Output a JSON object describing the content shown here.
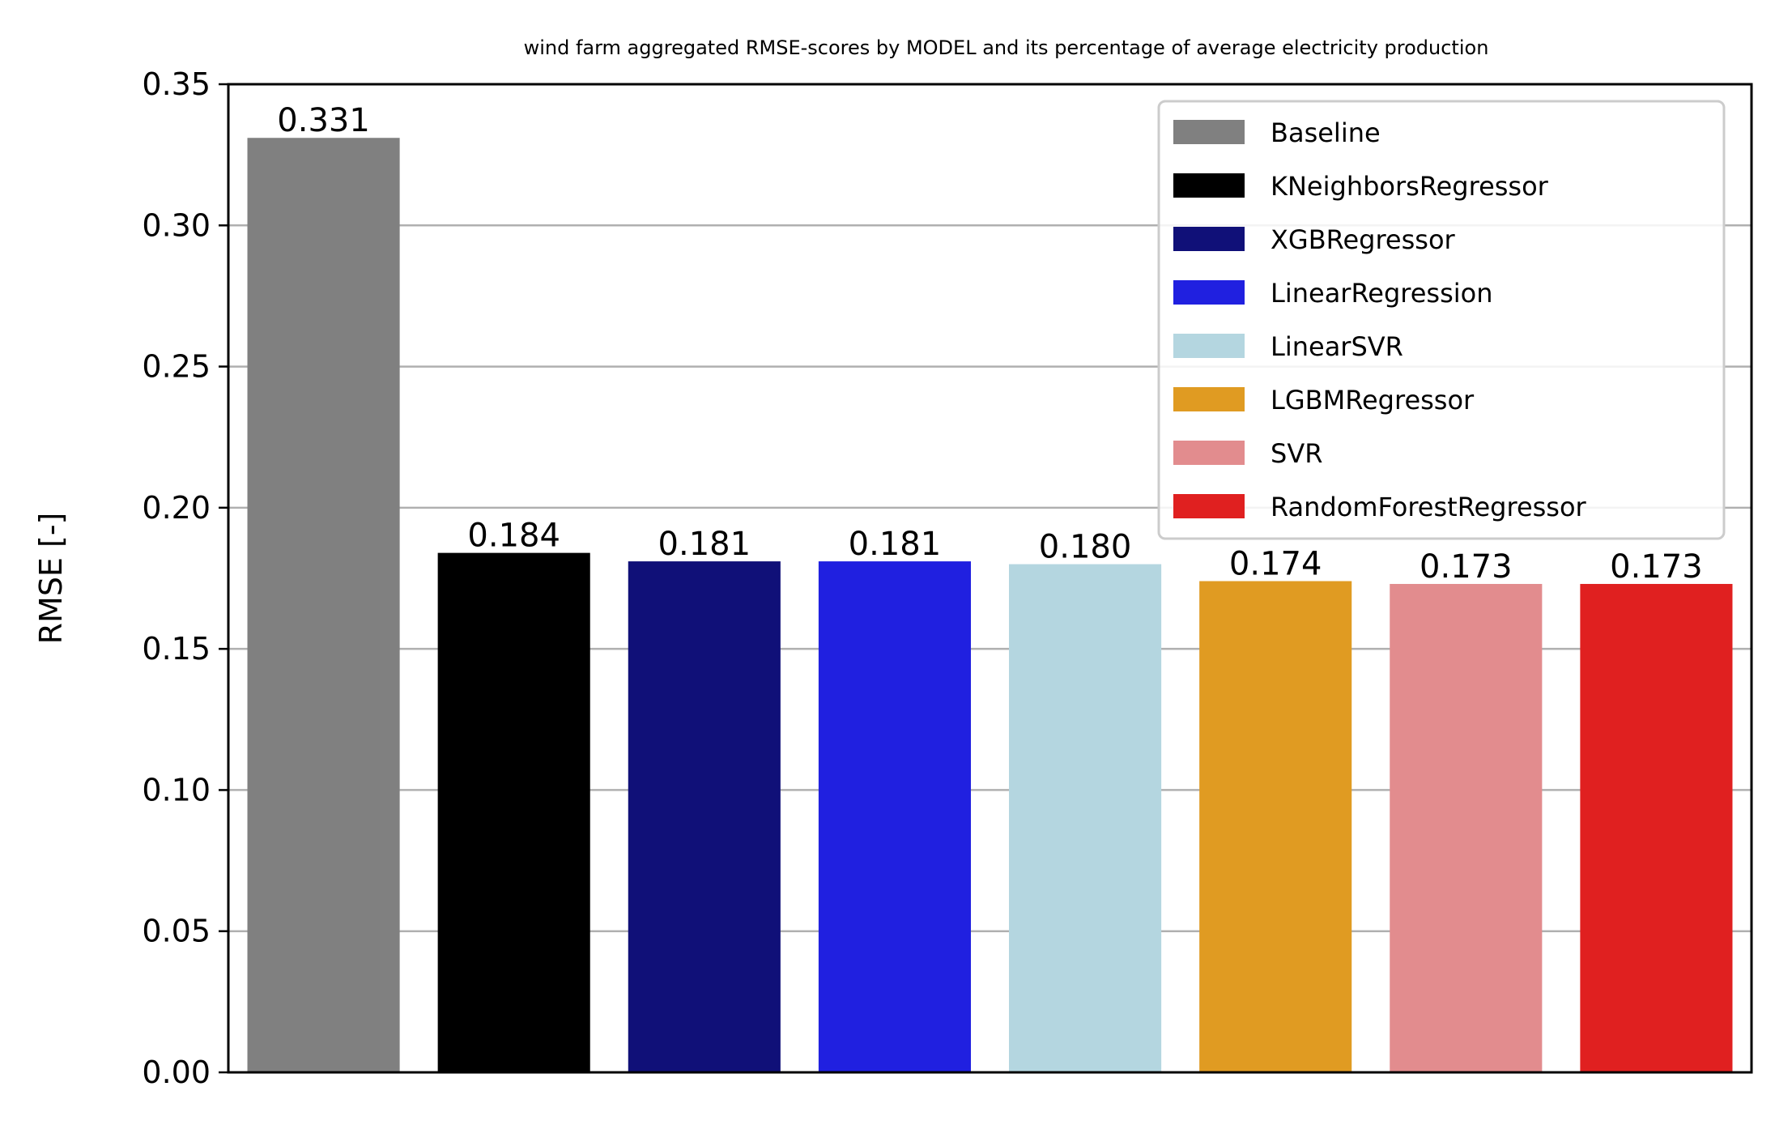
{
  "chart_data": {
    "type": "bar",
    "title": "wind farm aggregated RMSE-scores by MODEL and its percentage of average electricity production",
    "xlabel": "",
    "ylabel": "RMSE [-]",
    "ylim": [
      0,
      0.35
    ],
    "yticks": [
      "0.00",
      "0.05",
      "0.10",
      "0.15",
      "0.20",
      "0.25",
      "0.30",
      "0.35"
    ],
    "grid": "horizontal",
    "legend_position": "top-right",
    "series": [
      {
        "name": "Baseline",
        "value": 0.331,
        "label": "0.331",
        "color": "#808080"
      },
      {
        "name": "KNeighborsRegressor",
        "value": 0.184,
        "label": "0.184",
        "color": "#000000"
      },
      {
        "name": "XGBRegressor",
        "value": 0.181,
        "label": "0.181",
        "color": "#101078"
      },
      {
        "name": "LinearRegression",
        "value": 0.181,
        "label": "0.181",
        "color": "#2020e0"
      },
      {
        "name": "LinearSVR",
        "value": 0.18,
        "label": "0.180",
        "color": "#b4d6e0"
      },
      {
        "name": "LGBMRegressor",
        "value": 0.174,
        "label": "0.174",
        "color": "#e09b22"
      },
      {
        "name": "SVR",
        "value": 0.173,
        "label": "0.173",
        "color": "#e28c8e"
      },
      {
        "name": "RandomForestRegressor",
        "value": 0.173,
        "label": "0.173",
        "color": "#e02020"
      }
    ]
  }
}
